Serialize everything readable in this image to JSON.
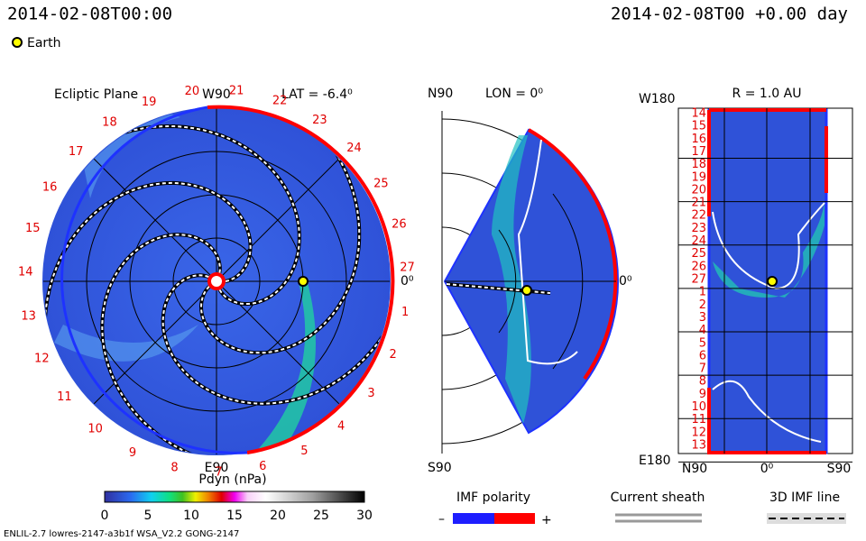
{
  "header": {
    "left_time": "2014-02-08T00:00",
    "right_time": "2014-02-08T00 +0.00 day",
    "legend": "Earth"
  },
  "ecliptic": {
    "title": "Ecliptic Plane",
    "lat": "LAT = -6.4⁰",
    "top": "W90",
    "bottom": "E90",
    "right": "0⁰",
    "numbers": [
      "1",
      "2",
      "3",
      "4",
      "5",
      "6",
      "7",
      "8",
      "9",
      "10",
      "11",
      "12",
      "13",
      "14",
      "15",
      "16",
      "17",
      "18",
      "19",
      "20",
      "21",
      "22",
      "23",
      "24",
      "25",
      "26",
      "27"
    ]
  },
  "meridional": {
    "top": "N90",
    "lon": "LON = 0⁰",
    "bottom": "S90",
    "right": "0⁰"
  },
  "radial": {
    "title": "R = 1.0 AU",
    "top": "W180",
    "bottom": "E180",
    "x_left": "N90",
    "x_mid": "0⁰",
    "x_right": "S90",
    "rows": [
      "14",
      "15",
      "16",
      "17",
      "18",
      "19",
      "20",
      "21",
      "22",
      "23",
      "24",
      "25",
      "26",
      "27",
      "1",
      "2",
      "3",
      "4",
      "5",
      "6",
      "7",
      "8",
      "9",
      "10",
      "11",
      "12",
      "13"
    ]
  },
  "colorbar": {
    "title": "Pdyn (nPa)",
    "ticks": [
      "0",
      "5",
      "10",
      "15",
      "20",
      "25",
      "30"
    ]
  },
  "legends": {
    "imf": "IMF polarity",
    "minus": "–",
    "plus": "+",
    "sheath": "Current sheath",
    "line3d": "3D IMF line"
  },
  "footer": "ENLIL-2.7 lowres-2147-a3b1f WSA_V2.2 GONG-2147"
}
